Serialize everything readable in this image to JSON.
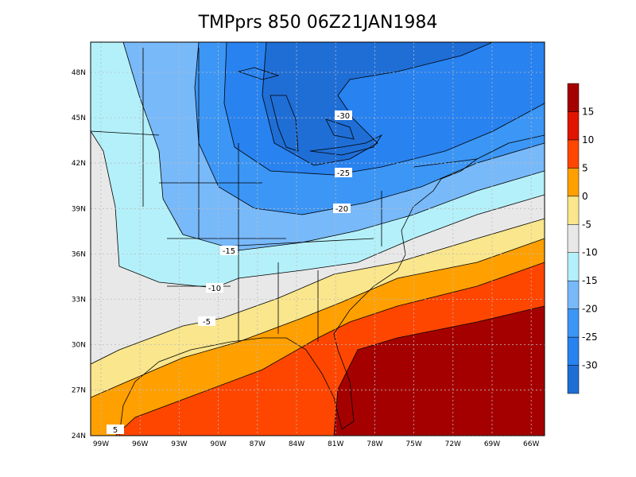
{
  "title": "TMPprs 850 06Z21JAN1984",
  "lat_labels": [
    "48N",
    "45N",
    "42N",
    "39N",
    "36N",
    "33N",
    "30N",
    "27N",
    "24N"
  ],
  "lon_labels": [
    "99W",
    "96W",
    "93W",
    "90W",
    "87W",
    "84W",
    "81W",
    "78W",
    "75W",
    "72W",
    "69W",
    "66W"
  ],
  "contour_labels": [
    "-30",
    "-25",
    "-20",
    "-15",
    "-10",
    "-5",
    "5"
  ],
  "colorbar": {
    "colors": [
      "#1f6ed6",
      "#2882f0",
      "#3c96f5",
      "#78b9fa",
      "#b4f0fa",
      "#e8e8e8",
      "#fae68c",
      "#ffa000",
      "#ff4600",
      "#e11400",
      "#a50000"
    ],
    "labels": [
      "-30",
      "-25",
      "-20",
      "-15",
      "-10",
      "-5",
      "0",
      "5",
      "10",
      "15"
    ]
  }
}
